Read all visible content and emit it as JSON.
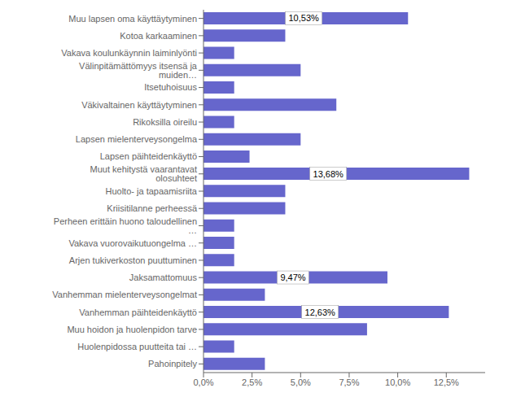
{
  "chart_data": {
    "type": "bar",
    "orientation": "horizontal",
    "categories": [
      "Pahoinpitely",
      "Huolenpidossa puutteita tai …",
      "Muu hoidon ja huolenpidon tarve",
      "Vanhemman päihteidenkäyttö",
      "Vanhemman mielenterveysongelmat",
      "Jaksamattomuus",
      "Arjen tukiverkoston puuttuminen",
      "Vakava vuorovaikutuongelma …",
      "Perheen erittäin huono taloudellinen …",
      "Kriisitilanne perheessä",
      "Huolto- ja tapaamisriita",
      "Muut kehitystä vaarantavat olosuhteet",
      "Lapsen päihteidenkäyttö",
      "Lapsen mielenterveysongelma",
      "Rikoksilla oireilu",
      "Väkivaltainen käyttäytyminen",
      "Itsetuhoisuus",
      "Välinpitämättömyys itsensä ja muiden…",
      "Vakava koulunkäynnin laiminlyönti",
      "Kotoa karkaaminen",
      "Muu lapsen oma käyttäytyminen"
    ],
    "values": [
      3.16,
      1.58,
      8.42,
      12.63,
      3.16,
      9.47,
      1.58,
      1.58,
      1.58,
      4.21,
      4.21,
      13.68,
      2.37,
      5.0,
      1.58,
      6.84,
      1.58,
      5.0,
      1.58,
      4.21,
      10.53
    ],
    "value_labels": [
      null,
      null,
      null,
      "12,63%",
      null,
      "9,47%",
      null,
      null,
      null,
      null,
      null,
      "13,68%",
      null,
      null,
      null,
      null,
      null,
      null,
      null,
      null,
      "10,53%"
    ],
    "data_labels": true,
    "color": "#6666CC",
    "xlim": [
      0,
      14.5
    ],
    "xticks": [
      {
        "value": 0.0,
        "label": "0,0%"
      },
      {
        "value": 2.5,
        "label": "2,5%"
      },
      {
        "value": 5.0,
        "label": "5,0%"
      },
      {
        "value": 7.5,
        "label": "7,5%"
      },
      {
        "value": 10.0,
        "label": "10,0%"
      },
      {
        "value": 12.5,
        "label": "12,5%"
      }
    ],
    "grid": false
  }
}
